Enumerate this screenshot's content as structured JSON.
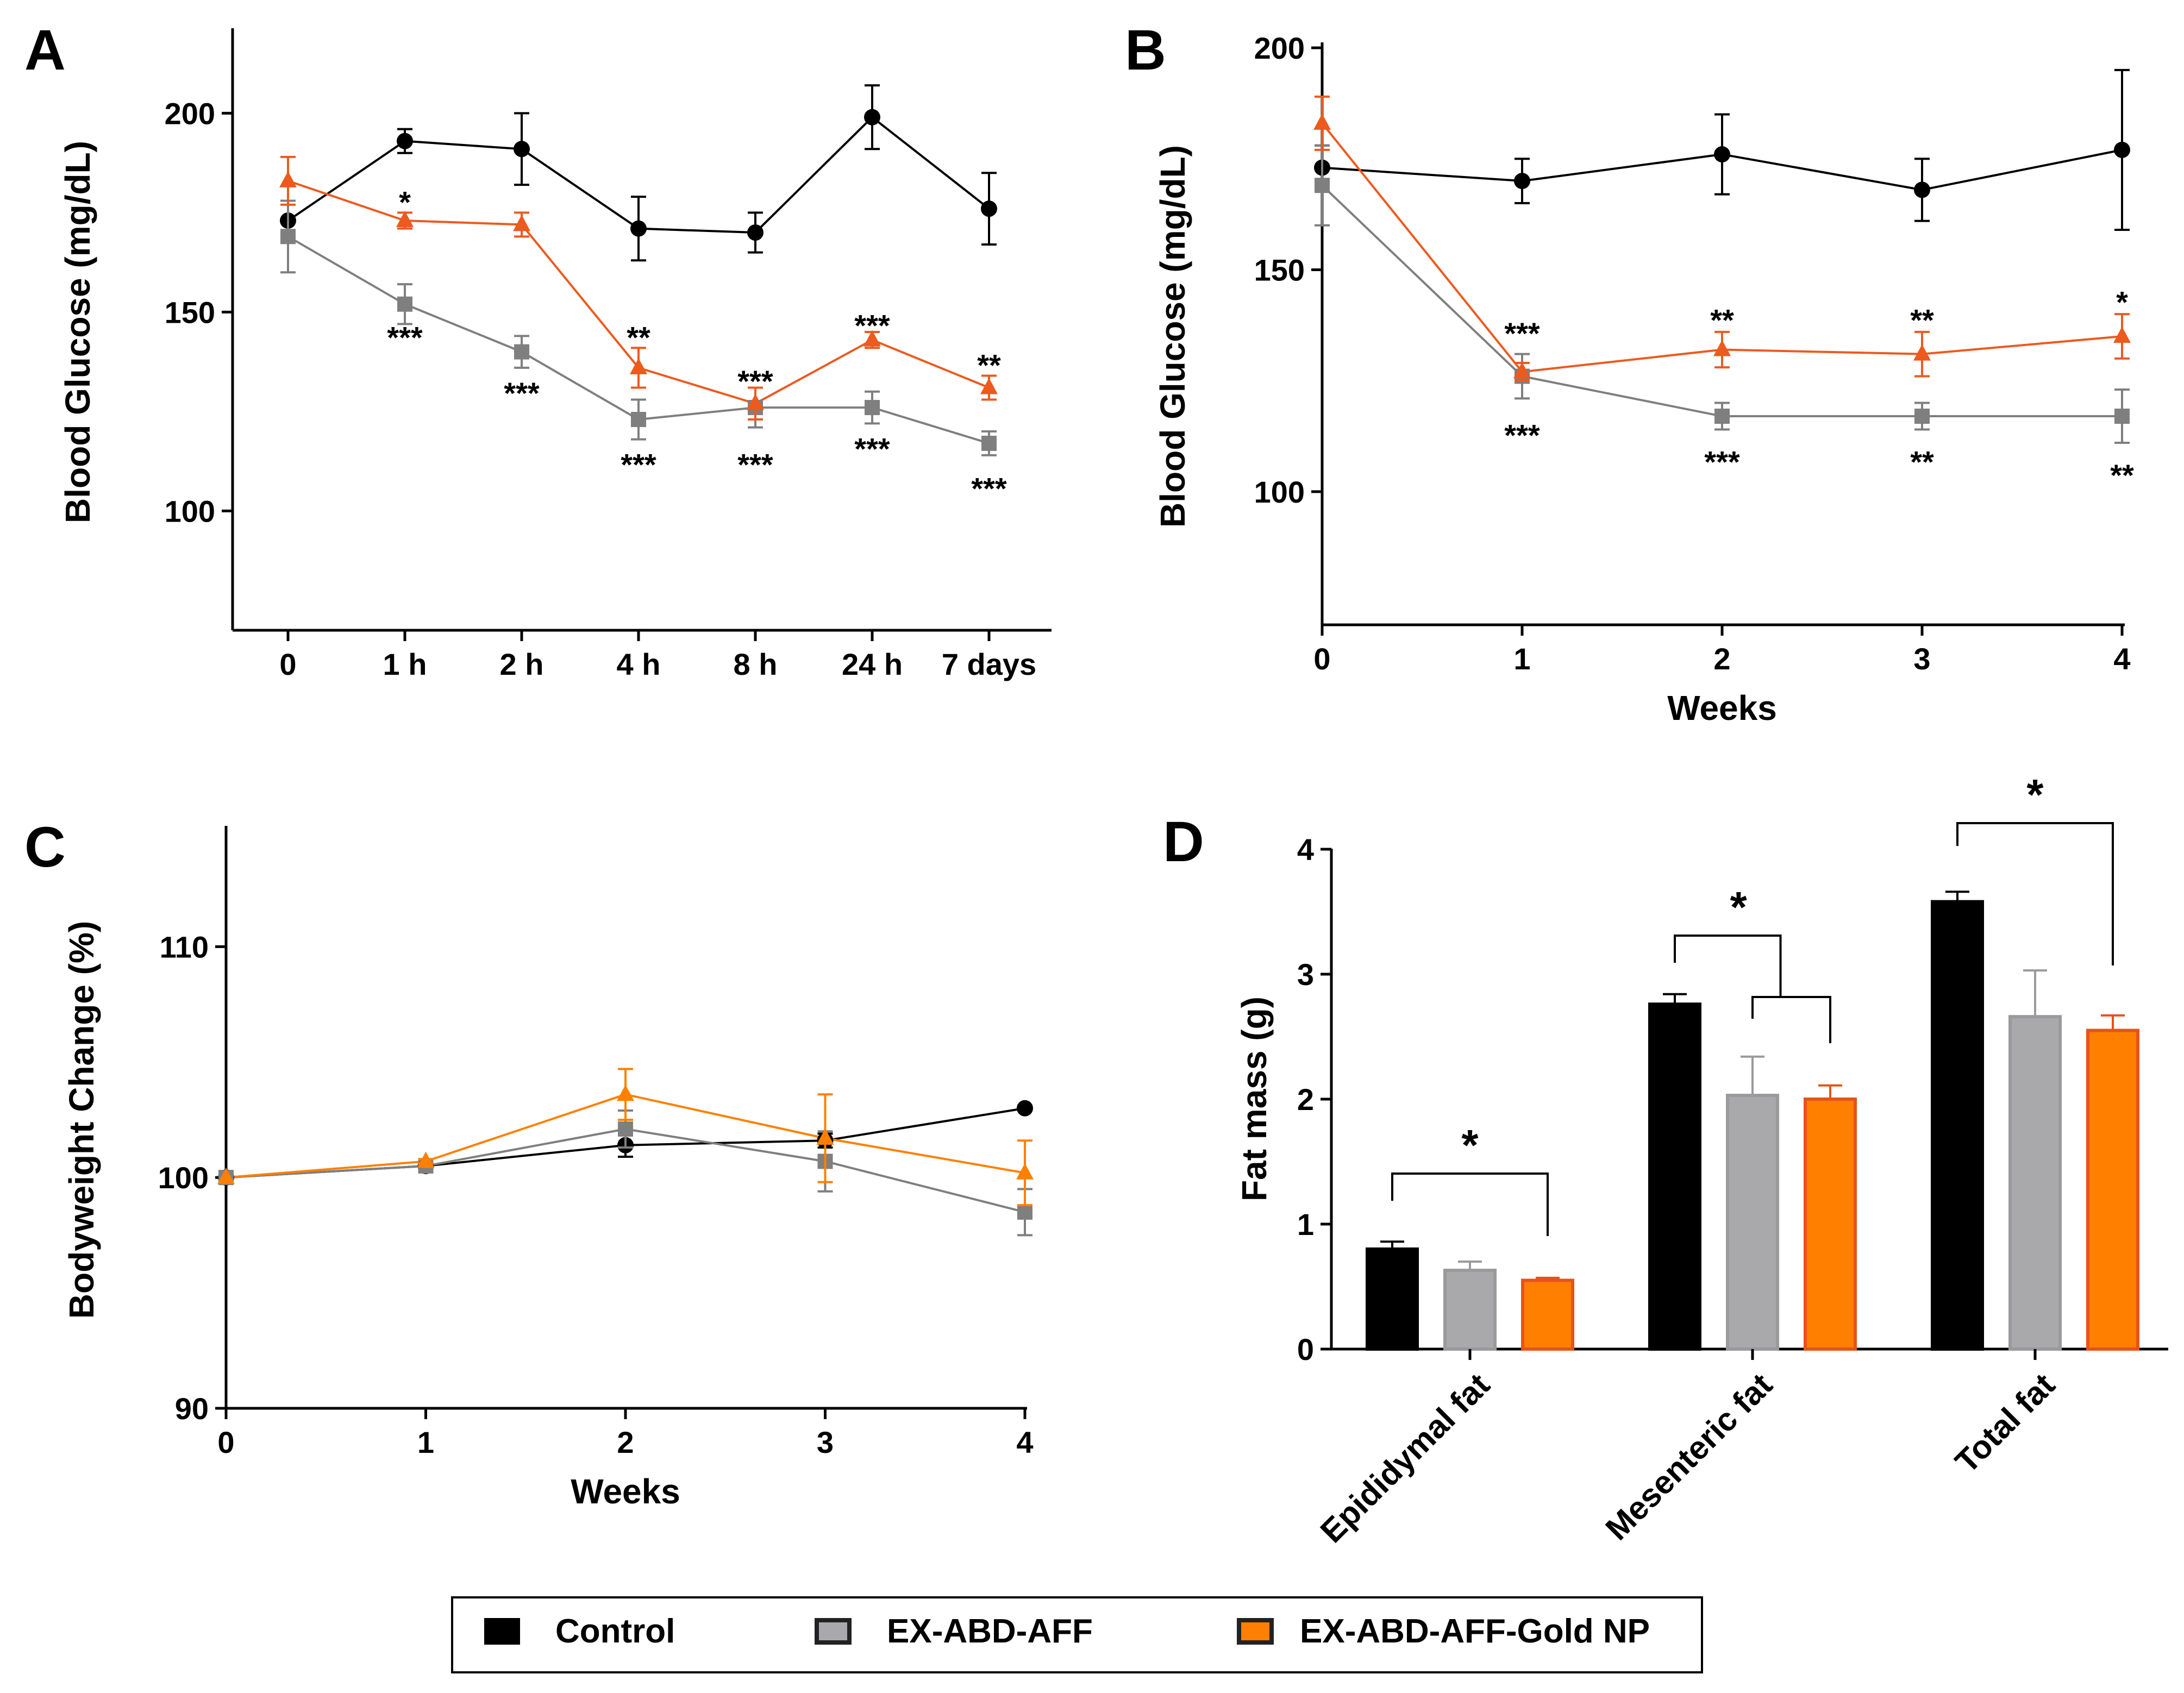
{
  "colors": {
    "control": "#000000",
    "exabd": "#7f7f7f",
    "gold": "#ec5a1e",
    "gold_bar": "#ff8000",
    "gold_bar_edge": "#e8521a",
    "grey_bar": "#a9a9ab"
  },
  "legend": [
    {
      "label": "Control",
      "color": "#000000"
    },
    {
      "label": "EX-ABD-AFF",
      "color": "#a9a9ab"
    },
    {
      "label": "EX-ABD-AFF-Gold NP",
      "color": "#ff8000"
    }
  ],
  "chart_data": [
    {
      "panel": "A",
      "type": "line",
      "title": "",
      "xlabel": "",
      "ylabel": "Blood Glucose (mg/dL)",
      "categories": [
        "0",
        "1 h",
        "2 h",
        "4 h",
        "8 h",
        "24 h",
        "7 days"
      ],
      "ylim": [
        70,
        220
      ],
      "yticks": [
        100,
        150,
        200
      ],
      "series": [
        {
          "name": "Control",
          "marker": "circle",
          "values": [
            173,
            193,
            191,
            171,
            170,
            199,
            176
          ],
          "errors": [
            5,
            3,
            9,
            8,
            5,
            8,
            9
          ]
        },
        {
          "name": "EX-ABD-AFF",
          "marker": "square",
          "values": [
            169,
            152,
            140,
            123,
            126,
            126,
            117
          ],
          "errors": [
            9,
            5,
            4,
            5,
            5,
            4,
            3
          ]
        },
        {
          "name": "EX-ABD-AFF-Gold NP",
          "marker": "triangle",
          "values": [
            183,
            173,
            172,
            136,
            127,
            143,
            131
          ],
          "errors": [
            6,
            2,
            3,
            5,
            4,
            2,
            3
          ]
        }
      ],
      "annotations": [
        {
          "text": "*",
          "x": "1 h",
          "y": 178
        },
        {
          "text": "***",
          "x": "1 h",
          "y": 144
        },
        {
          "text": "***",
          "x": "2 h",
          "y": 130
        },
        {
          "text": "**",
          "x": "4 h",
          "y": 144
        },
        {
          "text": "***",
          "x": "4 h",
          "y": 112
        },
        {
          "text": "***",
          "x": "8 h",
          "y": 133
        },
        {
          "text": "***",
          "x": "8 h",
          "y": 112
        },
        {
          "text": "***",
          "x": "24 h",
          "y": 147
        },
        {
          "text": "***",
          "x": "24 h",
          "y": 116
        },
        {
          "text": "**",
          "x": "7 days",
          "y": 137
        },
        {
          "text": "***",
          "x": "7 days",
          "y": 106
        }
      ]
    },
    {
      "panel": "B",
      "type": "line",
      "title": "",
      "xlabel": "Weeks",
      "ylabel": "Blood Glucose (mg/dL)",
      "x": [
        0,
        1,
        2,
        3,
        4
      ],
      "xlim": [
        0,
        4
      ],
      "ylim": [
        70,
        200
      ],
      "yticks": [
        100,
        150,
        200
      ],
      "series": [
        {
          "name": "Control",
          "marker": "circle",
          "values": [
            173,
            170,
            176,
            168,
            177
          ],
          "errors": [
            5,
            5,
            9,
            7,
            18
          ]
        },
        {
          "name": "EX-ABD-AFF",
          "marker": "square",
          "values": [
            169,
            126,
            117,
            117,
            117
          ],
          "errors": [
            9,
            5,
            3,
            3,
            6
          ]
        },
        {
          "name": "EX-ABD-AFF-Gold NP",
          "marker": "triangle",
          "values": [
            183,
            127,
            132,
            131,
            135
          ],
          "errors": [
            6,
            2,
            4,
            5,
            5
          ]
        }
      ],
      "annotations": [
        {
          "text": "***",
          "x": 1,
          "y": 136
        },
        {
          "text": "***",
          "x": 1,
          "y": 113
        },
        {
          "text": "**",
          "x": 2,
          "y": 139
        },
        {
          "text": "***",
          "x": 2,
          "y": 107
        },
        {
          "text": "**",
          "x": 3,
          "y": 139
        },
        {
          "text": "**",
          "x": 3,
          "y": 107
        },
        {
          "text": "*",
          "x": 4,
          "y": 143
        },
        {
          "text": "**",
          "x": 4,
          "y": 104
        }
      ]
    },
    {
      "panel": "C",
      "type": "line",
      "title": "",
      "xlabel": "Weeks",
      "ylabel": "Bodyweight Change (%)",
      "x": [
        0,
        1,
        2,
        3,
        4
      ],
      "xlim": [
        0,
        4
      ],
      "ylim": [
        90,
        115
      ],
      "yticks": [
        90,
        100,
        110
      ],
      "series": [
        {
          "name": "Control",
          "marker": "circle",
          "color": "#000000",
          "values": [
            100,
            100.5,
            101.4,
            101.6,
            103
          ],
          "errors": [
            0,
            0.1,
            0.5,
            0.3,
            0.1
          ]
        },
        {
          "name": "EX-ABD-AFF",
          "marker": "square",
          "color": "#7f7f7f",
          "values": [
            100,
            100.5,
            102.1,
            100.7,
            98.5
          ],
          "errors": [
            0,
            0.2,
            0.8,
            1.3,
            1.0
          ]
        },
        {
          "name": "EX-ABD-AFF-Gold NP",
          "marker": "triangle",
          "color": "#ff8000",
          "values": [
            100,
            100.7,
            103.6,
            101.7,
            100.2
          ],
          "errors": [
            0,
            0.1,
            1.1,
            1.9,
            1.4
          ]
        }
      ]
    },
    {
      "panel": "D",
      "type": "bar",
      "title": "",
      "xlabel": "",
      "ylabel": "Fat mass (g)",
      "categories": [
        "Epididymal fat",
        "Mesenteric fat",
        "Total fat"
      ],
      "ylim": [
        0,
        4
      ],
      "yticks": [
        0,
        1,
        2,
        3,
        4
      ],
      "series": [
        {
          "name": "Control",
          "values": [
            0.8,
            2.76,
            3.58
          ],
          "errors": [
            0.06,
            0.08,
            0.08
          ]
        },
        {
          "name": "EX-ABD-AFF",
          "values": [
            0.63,
            2.03,
            2.66
          ],
          "errors": [
            0.07,
            0.31,
            0.37
          ]
        },
        {
          "name": "EX-ABD-AFF-Gold NP",
          "values": [
            0.55,
            2.0,
            2.55
          ],
          "errors": [
            0.02,
            0.11,
            0.12
          ]
        }
      ],
      "significance": [
        {
          "text": "*",
          "category": "Epididymal fat",
          "between": [
            "Control",
            "EX-ABD-AFF-Gold NP"
          ]
        },
        {
          "text": "*",
          "category": "Mesenteric fat",
          "between": [
            "Control",
            "EX-ABD-AFF and EX-ABD-AFF-Gold NP"
          ]
        },
        {
          "text": "*",
          "category": "Total fat",
          "between": [
            "Control",
            "EX-ABD-AFF-Gold NP"
          ]
        }
      ]
    }
  ]
}
